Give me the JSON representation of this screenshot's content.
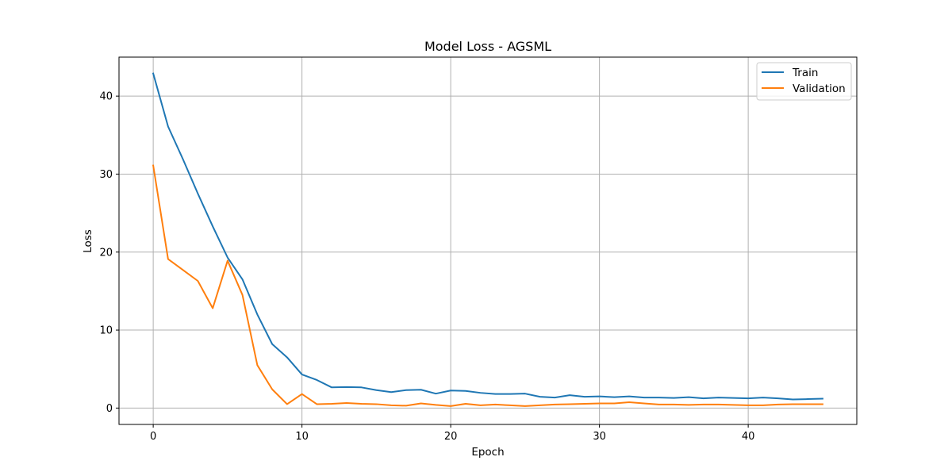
{
  "chart_data": {
    "type": "line",
    "title": "Model Loss - AGSML",
    "xlabel": "Epoch",
    "ylabel": "Loss",
    "xlim": [
      -2.3,
      47.3
    ],
    "ylim": [
      -2.1,
      45.0
    ],
    "xticks": [
      0,
      10,
      20,
      30,
      40
    ],
    "yticks": [
      0,
      10,
      20,
      30,
      40
    ],
    "grid": true,
    "legend_position": "top-right",
    "x": [
      0,
      1,
      2,
      3,
      4,
      5,
      6,
      7,
      8,
      9,
      10,
      11,
      12,
      13,
      14,
      15,
      16,
      17,
      18,
      19,
      20,
      21,
      22,
      23,
      24,
      25,
      26,
      27,
      28,
      29,
      30,
      31,
      32,
      33,
      34,
      35,
      36,
      37,
      38,
      39,
      40,
      41,
      42,
      43,
      44,
      45
    ],
    "series": [
      {
        "name": "Train",
        "color": "#1f77b4",
        "values": [
          42.9,
          36.1,
          31.9,
          27.5,
          23.3,
          19.3,
          16.5,
          12.0,
          8.2,
          6.5,
          4.3,
          3.6,
          2.65,
          2.7,
          2.65,
          2.3,
          2.05,
          2.3,
          2.35,
          1.85,
          2.25,
          2.2,
          1.95,
          1.8,
          1.8,
          1.85,
          1.45,
          1.35,
          1.65,
          1.45,
          1.5,
          1.4,
          1.5,
          1.35,
          1.35,
          1.3,
          1.4,
          1.25,
          1.35,
          1.3,
          1.25,
          1.35,
          1.25,
          1.1,
          1.15,
          1.2
        ]
      },
      {
        "name": "Validation",
        "color": "#ff7f0e",
        "values": [
          31.1,
          19.1,
          17.7,
          16.3,
          12.8,
          18.9,
          14.5,
          5.5,
          2.4,
          0.5,
          1.8,
          0.5,
          0.55,
          0.65,
          0.55,
          0.5,
          0.35,
          0.3,
          0.6,
          0.4,
          0.25,
          0.55,
          0.35,
          0.45,
          0.35,
          0.25,
          0.35,
          0.45,
          0.5,
          0.55,
          0.6,
          0.6,
          0.75,
          0.6,
          0.45,
          0.45,
          0.4,
          0.45,
          0.45,
          0.4,
          0.35,
          0.35,
          0.45,
          0.5,
          0.5,
          0.5
        ]
      }
    ]
  }
}
